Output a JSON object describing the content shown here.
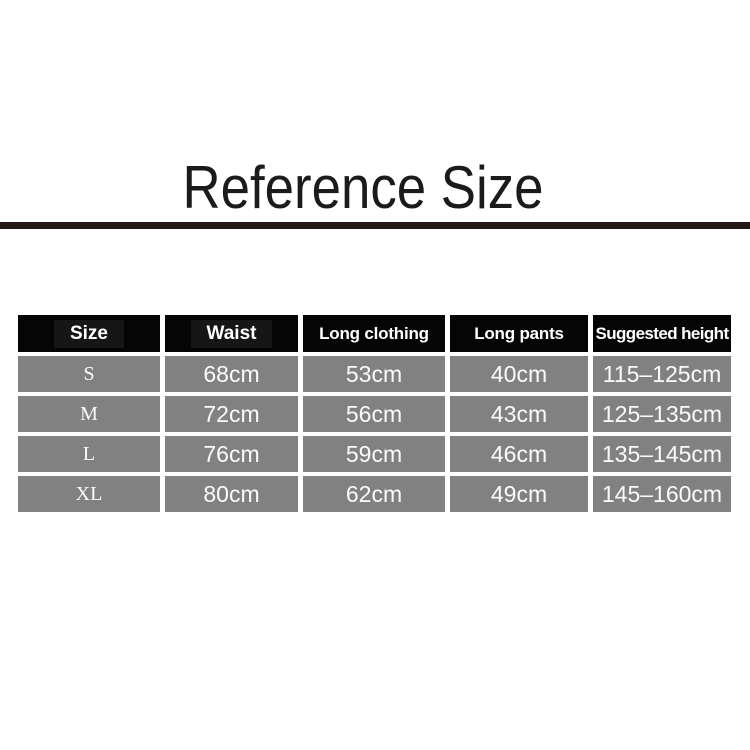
{
  "page": {
    "title": "Reference Size"
  },
  "chart_data": {
    "type": "table",
    "title": "Reference Size",
    "columns": [
      "Size",
      "Waist",
      "Long clothing",
      "Long pants",
      "Suggested height"
    ],
    "rows": [
      [
        "S",
        "68cm",
        "53cm",
        "40cm",
        "115–125cm"
      ],
      [
        "M",
        "72cm",
        "56cm",
        "43cm",
        "125–135cm"
      ],
      [
        "L",
        "76cm",
        "59cm",
        "46cm",
        "135–145cm"
      ],
      [
        "XL",
        "80cm",
        "62cm",
        "49cm",
        "145–160cm"
      ]
    ]
  },
  "colors": {
    "background": "#ffffff",
    "divider": "#231815",
    "header_bg": "#050505",
    "header_text": "#ffffff",
    "row_bg": "#818181",
    "row_text": "#fbfbfb",
    "title_text": "#1b1b1b"
  }
}
